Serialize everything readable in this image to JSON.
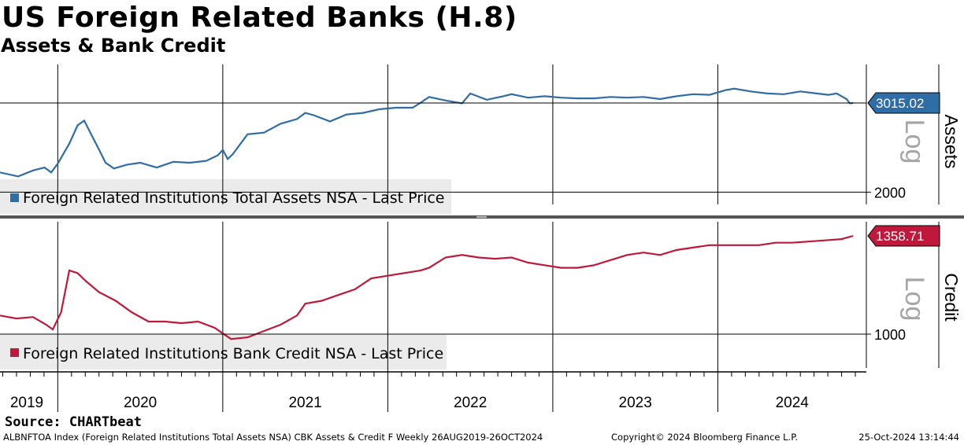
{
  "header": {
    "title": "US Foreign Related Banks (H.8)",
    "subtitle": "Assets & Bank Credit"
  },
  "footer": {
    "source": "Source: CHARTbeat",
    "index_info": "ALBNFTOA Index (Foreign Related Institutions Total Assets NSA) CBK Assets & Credit F  Weekly 26AUG2019-26OCT2024",
    "copyright": "Copyright© 2024 Bloomberg Finance L.P.",
    "timestamp": "25-Oct-2024 13:14:44"
  },
  "colors": {
    "assets": "#2e6da6",
    "credit": "#c0183a"
  },
  "chart_data": [
    {
      "type": "line",
      "title": "Assets",
      "scale_label": "Log",
      "legend": "Foreign Related Institutions Total Assets NSA - Last Price",
      "last_value_label": "3015.02",
      "y_tick_labels": [
        "2000"
      ],
      "y_ticks": [
        2000
      ],
      "ylim": [
        1890,
        3600
      ],
      "log_scale": true,
      "x_labels": [
        "2019",
        "2020",
        "2021",
        "2022",
        "2023",
        "2024"
      ],
      "xlim": [
        2019.65,
        2024.9
      ],
      "x": [
        2019.65,
        2019.76,
        2019.85,
        2019.92,
        2019.96,
        2020.0,
        2020.07,
        2020.12,
        2020.16,
        2020.2,
        2020.24,
        2020.29,
        2020.34,
        2020.42,
        2020.5,
        2020.6,
        2020.7,
        2020.8,
        2020.9,
        2020.97,
        2021.0,
        2021.03,
        2021.06,
        2021.15,
        2021.25,
        2021.35,
        2021.45,
        2021.5,
        2021.55,
        2021.65,
        2021.75,
        2021.85,
        2021.95,
        2022.05,
        2022.15,
        2022.2,
        2022.25,
        2022.35,
        2022.45,
        2022.5,
        2022.6,
        2022.7,
        2022.75,
        2022.85,
        2022.95,
        2023.05,
        2023.15,
        2023.25,
        2023.35,
        2023.45,
        2023.55,
        2023.65,
        2023.75,
        2023.85,
        2023.95,
        2024.05,
        2024.1,
        2024.2,
        2024.3,
        2024.4,
        2024.5,
        2024.6,
        2024.67,
        2024.72,
        2024.78,
        2024.8,
        2024.82
      ],
      "values": [
        2190,
        2150,
        2210,
        2240,
        2190,
        2280,
        2500,
        2720,
        2780,
        2620,
        2470,
        2290,
        2230,
        2270,
        2290,
        2240,
        2300,
        2290,
        2310,
        2370,
        2430,
        2330,
        2380,
        2610,
        2630,
        2740,
        2800,
        2880,
        2850,
        2770,
        2860,
        2880,
        2930,
        2950,
        2950,
        3020,
        3100,
        3050,
        3010,
        3150,
        3060,
        3110,
        3140,
        3090,
        3110,
        3090,
        3080,
        3080,
        3100,
        3090,
        3100,
        3070,
        3110,
        3140,
        3130,
        3200,
        3220,
        3180,
        3150,
        3140,
        3180,
        3150,
        3130,
        3150,
        3070,
        3010,
        3015
      ]
    },
    {
      "type": "line",
      "title": "Credit",
      "scale_label": "Log",
      "legend": "Foreign Related Institutions Bank Credit NSA - Last Price",
      "last_value_label": "1358.71",
      "y_tick_labels": [
        "1000"
      ],
      "y_ticks": [
        1000
      ],
      "ylim": [
        900,
        1420
      ],
      "log_scale": true,
      "x_labels": [
        "2019",
        "2020",
        "2021",
        "2022",
        "2023",
        "2024"
      ],
      "xlim": [
        2019.65,
        2024.9
      ],
      "x": [
        2019.65,
        2019.75,
        2019.85,
        2019.93,
        2019.97,
        2020.02,
        2020.07,
        2020.12,
        2020.17,
        2020.25,
        2020.35,
        2020.45,
        2020.55,
        2020.65,
        2020.75,
        2020.85,
        2020.95,
        2021.05,
        2021.15,
        2021.25,
        2021.35,
        2021.45,
        2021.5,
        2021.6,
        2021.7,
        2021.8,
        2021.9,
        2022.0,
        2022.1,
        2022.2,
        2022.25,
        2022.35,
        2022.45,
        2022.55,
        2022.65,
        2022.75,
        2022.85,
        2022.95,
        2023.05,
        2023.15,
        2023.25,
        2023.35,
        2023.45,
        2023.55,
        2023.65,
        2023.75,
        2023.85,
        2023.95,
        2024.05,
        2024.15,
        2024.25,
        2024.35,
        2024.45,
        2024.55,
        2024.65,
        2024.75,
        2024.82
      ],
      "values": [
        1060,
        1050,
        1055,
        1030,
        1015,
        1070,
        1220,
        1210,
        1180,
        1140,
        1110,
        1070,
        1040,
        1040,
        1035,
        1040,
        1020,
        985,
        990,
        1010,
        1030,
        1060,
        1100,
        1110,
        1130,
        1150,
        1190,
        1200,
        1210,
        1220,
        1230,
        1270,
        1280,
        1270,
        1265,
        1270,
        1250,
        1240,
        1230,
        1230,
        1240,
        1260,
        1280,
        1290,
        1280,
        1300,
        1310,
        1320,
        1320,
        1320,
        1320,
        1330,
        1330,
        1335,
        1340,
        1345,
        1358.71
      ]
    }
  ]
}
